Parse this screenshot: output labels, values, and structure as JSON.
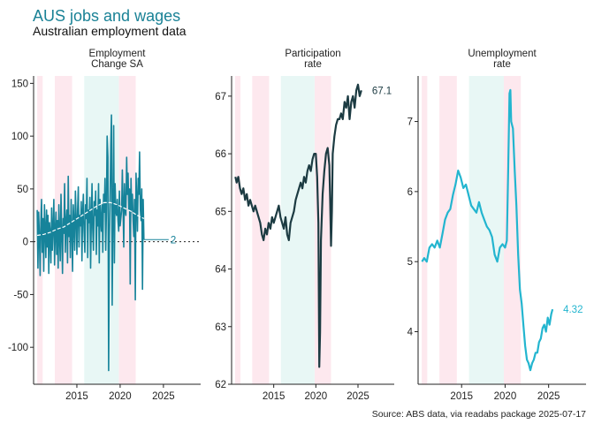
{
  "title": "AUS jobs and wages",
  "subtitle": "Australian employment data",
  "caption": "Source: ABS data, via readabs package 2025-07-17",
  "colors": {
    "title": "#1a8296",
    "recession_band": "#fde8ee",
    "growth_band": "#e8f7f5",
    "employment": "#16839a",
    "participation": "#1c3b42",
    "unemployment": "#23b5cf"
  },
  "chart_data": [
    {
      "type": "line",
      "panel_title": [
        "Employment",
        "Change SA"
      ],
      "xlim": [
        2010,
        2029.3
      ],
      "ylim": [
        -135,
        157
      ],
      "x_ticks": [
        2015,
        2020,
        2025
      ],
      "y_ticks": [
        -100,
        -50,
        0,
        50,
        100,
        150
      ],
      "y_tick_labels": [
        "-100",
        "-50",
        "0",
        "50",
        "100",
        "150"
      ],
      "reference_line": 0,
      "end_label": "2",
      "series": [
        {
          "values_monthly_from": 2010.42,
          "values": [
            30,
            -25,
            28,
            5,
            -32,
            18,
            40,
            -10,
            22,
            -28,
            35,
            12,
            -15,
            30,
            -5,
            25,
            -30,
            18,
            8,
            -20,
            32,
            -8,
            15,
            40,
            -22,
            10,
            28,
            -12,
            20,
            -25,
            35,
            5,
            -18,
            45,
            12,
            -30,
            22,
            8,
            55,
            -10,
            18,
            30,
            -20,
            62,
            5,
            25,
            -15,
            40,
            10,
            -28,
            35,
            18,
            -8,
            48,
            20,
            -12,
            30,
            52,
            -5,
            25,
            15,
            38,
            -18,
            28,
            45,
            10,
            -10,
            35,
            22,
            60,
            -15,
            30,
            18,
            42,
            -25,
            20,
            55,
            12,
            -8,
            38,
            25,
            48,
            -12,
            30,
            15,
            55,
            -20,
            40,
            22,
            10,
            35,
            -10,
            45,
            28,
            60,
            -8,
            30,
            100,
            80,
            -122,
            5,
            40,
            90,
            120,
            -60,
            30,
            110,
            -20,
            55,
            30,
            25,
            40,
            20,
            10,
            48,
            15,
            22,
            30,
            68,
            35,
            -5,
            55,
            30,
            25,
            80,
            45,
            65,
            30,
            50,
            -40,
            60,
            30,
            45,
            20,
            5,
            40,
            -55,
            65,
            40,
            10,
            60,
            45,
            85,
            30,
            20,
            50,
            -45,
            40,
            2
          ],
          "trend": [
            6,
            7,
            9,
            12,
            14,
            18,
            22,
            26,
            30,
            34,
            37,
            37,
            35,
            32,
            29,
            25,
            22
          ]
        }
      ]
    },
    {
      "type": "line",
      "panel_title": [
        "Participation",
        "rate"
      ],
      "xlim": [
        2010,
        2029.3
      ],
      "ylim": [
        62,
        67.35
      ],
      "x_ticks": [
        2015,
        2020,
        2025
      ],
      "y_ticks": [
        62,
        63,
        64,
        65,
        66,
        67
      ],
      "y_tick_labels": [
        "62",
        "63",
        "64",
        "65",
        "66",
        "67"
      ],
      "end_label": "67.1",
      "series": [
        {
          "x": [
            2010.45,
            2010.6,
            2010.8,
            2011.0,
            2011.2,
            2011.4,
            2011.6,
            2011.8,
            2012.0,
            2012.2,
            2012.4,
            2012.6,
            2012.8,
            2013.0,
            2013.2,
            2013.4,
            2013.6,
            2013.8,
            2014.0,
            2014.2,
            2014.4,
            2014.6,
            2014.8,
            2015.0,
            2015.2,
            2015.4,
            2015.6,
            2015.8,
            2016.0,
            2016.2,
            2016.4,
            2016.6,
            2016.8,
            2017.0,
            2017.2,
            2017.4,
            2017.6,
            2017.8,
            2018.0,
            2018.2,
            2018.4,
            2018.6,
            2018.8,
            2019.0,
            2019.2,
            2019.4,
            2019.6,
            2019.8,
            2020.0,
            2020.15,
            2020.3,
            2020.4,
            2020.5,
            2020.6,
            2020.8,
            2021.0,
            2021.2,
            2021.4,
            2021.6,
            2021.7,
            2021.8,
            2021.9,
            2022.0,
            2022.2,
            2022.4,
            2022.6,
            2022.8,
            2023.0,
            2023.2,
            2023.4,
            2023.6,
            2023.8,
            2024.0,
            2024.2,
            2024.4,
            2024.6,
            2024.8,
            2025.0,
            2025.2,
            2025.4
          ],
          "values": [
            65.6,
            65.5,
            65.6,
            65.4,
            65.3,
            65.4,
            65.2,
            65.3,
            65.1,
            65.2,
            65.1,
            65.0,
            65.1,
            65.0,
            64.9,
            64.8,
            64.6,
            64.5,
            64.7,
            64.6,
            64.8,
            64.7,
            64.9,
            64.8,
            64.9,
            65.0,
            65.1,
            64.9,
            64.8,
            64.7,
            64.9,
            64.6,
            64.5,
            64.8,
            64.9,
            65.0,
            65.2,
            65.3,
            65.4,
            65.5,
            65.4,
            65.6,
            65.5,
            65.7,
            65.8,
            65.7,
            65.9,
            66.0,
            66.0,
            65.6,
            64.8,
            62.3,
            62.9,
            64.5,
            65.3,
            65.7,
            66.0,
            66.1,
            65.8,
            65.2,
            64.4,
            65.0,
            66.0,
            66.3,
            66.5,
            66.6,
            66.6,
            66.7,
            66.6,
            66.9,
            66.8,
            67.0,
            66.6,
            66.9,
            67.0,
            66.8,
            67.1,
            67.2,
            67.0,
            67.1
          ]
        }
      ]
    },
    {
      "type": "line",
      "panel_title": [
        "Unemployment",
        "rate"
      ],
      "xlim": [
        2010,
        2029.3
      ],
      "ylim": [
        3.25,
        7.65
      ],
      "x_ticks": [
        2015,
        2020,
        2025
      ],
      "y_ticks": [
        4,
        5,
        6,
        7
      ],
      "y_tick_labels": [
        "4",
        "5",
        "6",
        "7"
      ],
      "end_label": "4.32",
      "series": [
        {
          "x": [
            2010.45,
            2010.7,
            2011.0,
            2011.3,
            2011.6,
            2011.9,
            2012.2,
            2012.5,
            2012.8,
            2013.1,
            2013.4,
            2013.7,
            2014.0,
            2014.3,
            2014.6,
            2014.9,
            2015.2,
            2015.5,
            2015.8,
            2016.1,
            2016.4,
            2016.7,
            2017.0,
            2017.3,
            2017.6,
            2017.9,
            2018.2,
            2018.5,
            2018.8,
            2019.1,
            2019.4,
            2019.7,
            2020.0,
            2020.2,
            2020.35,
            2020.5,
            2020.6,
            2020.7,
            2020.9,
            2021.1,
            2021.3,
            2021.5,
            2021.7,
            2021.9,
            2022.1,
            2022.3,
            2022.5,
            2022.7,
            2022.9,
            2023.1,
            2023.3,
            2023.5,
            2023.7,
            2023.9,
            2024.1,
            2024.3,
            2024.5,
            2024.7,
            2024.9,
            2025.1,
            2025.3,
            2025.45
          ],
          "values": [
            5.0,
            5.05,
            5.0,
            5.2,
            5.25,
            5.2,
            5.3,
            5.2,
            5.4,
            5.6,
            5.7,
            5.75,
            5.95,
            6.1,
            6.3,
            6.2,
            6.05,
            6.1,
            5.95,
            5.8,
            5.75,
            5.7,
            5.85,
            5.7,
            5.6,
            5.5,
            5.45,
            5.35,
            5.1,
            5.0,
            5.2,
            5.25,
            5.2,
            5.3,
            6.3,
            7.4,
            7.45,
            7.0,
            6.9,
            6.3,
            5.8,
            5.1,
            4.6,
            4.4,
            4.1,
            3.8,
            3.6,
            3.55,
            3.45,
            3.55,
            3.6,
            3.7,
            3.7,
            3.85,
            3.9,
            4.05,
            4.1,
            4.0,
            4.2,
            4.1,
            4.25,
            4.32
          ]
        }
      ]
    }
  ],
  "recession_bands": [
    [
      2010.42,
      2011.05
    ],
    [
      2012.45,
      2014.45
    ],
    [
      2019.85,
      2021.8
    ]
  ],
  "growth_bands": [
    [
      2015.85,
      2019.85
    ]
  ]
}
